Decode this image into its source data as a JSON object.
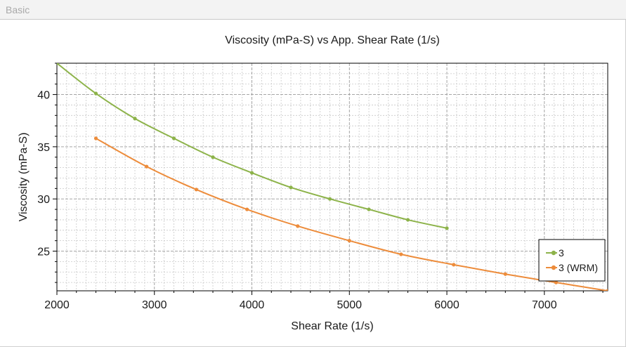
{
  "window": {
    "tab_label": "Basic"
  },
  "chart_data": {
    "type": "line",
    "title": "Viscosity (mPa-S) vs App. Shear Rate (1/s)",
    "xlabel": "Shear Rate (1/s)",
    "ylabel": "Viscosity (mPa-S)",
    "xlim": [
      2000,
      7650
    ],
    "ylim": [
      21.2,
      43.0
    ],
    "xticks": [
      2000,
      3000,
      4000,
      5000,
      6000,
      7000
    ],
    "yticks": [
      25,
      30,
      35,
      40
    ],
    "grid": true,
    "legend_position": "bottom-right",
    "series": [
      {
        "name": "3",
        "color": "#8db34a",
        "x": [
          2000,
          2400,
          2800,
          3200,
          3600,
          4000,
          4400,
          4800,
          5200,
          5600,
          6000
        ],
        "y": [
          43.0,
          40.1,
          37.7,
          35.8,
          34.0,
          32.5,
          31.1,
          30.0,
          29.0,
          28.0,
          27.2
        ]
      },
      {
        "name": "3 (WRM)",
        "color": "#ed8c3b",
        "x": [
          2400,
          2920,
          3430,
          3950,
          4470,
          5000,
          5530,
          6070,
          6600,
          7120,
          7650
        ],
        "y": [
          35.8,
          33.1,
          30.9,
          29.0,
          27.4,
          26.0,
          24.7,
          23.7,
          22.8,
          22.0,
          21.2
        ]
      }
    ]
  }
}
